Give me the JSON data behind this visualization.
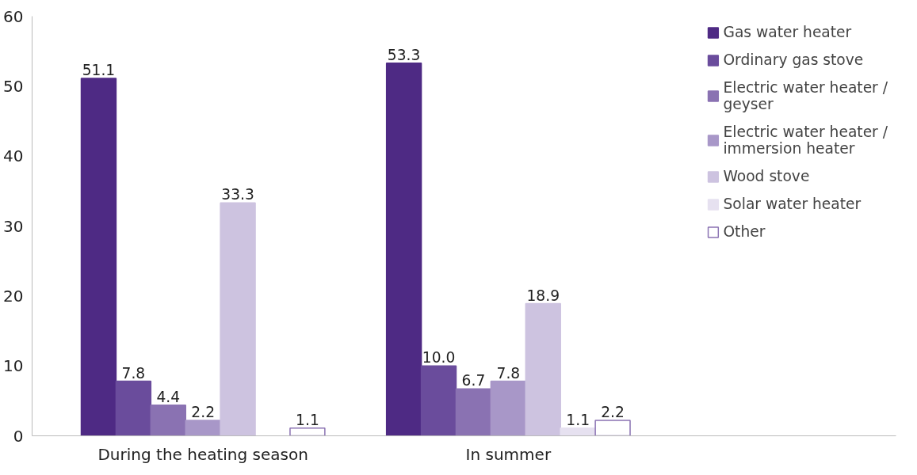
{
  "chart_data": {
    "type": "bar",
    "categories": [
      "During the heating season",
      "In summer"
    ],
    "series": [
      {
        "name": "Gas water heater",
        "color": "#4e2a84",
        "values": [
          51.1,
          53.3
        ],
        "value_labels": [
          "51.1",
          "53.3"
        ]
      },
      {
        "name": "Ordinary gas stove",
        "color": "#6a4c9c",
        "values": [
          7.8,
          10.0
        ],
        "value_labels": [
          "7.8",
          "10.0"
        ]
      },
      {
        "name": "Electric water heater / geyser",
        "color": "#8a72b2",
        "values": [
          4.4,
          6.7
        ],
        "value_labels": [
          "4.4",
          "6.7"
        ]
      },
      {
        "name": "Electric water heater / immersion heater",
        "color": "#a897c8",
        "values": [
          2.2,
          7.8
        ],
        "value_labels": [
          "2.2",
          "7.8"
        ]
      },
      {
        "name": "Wood stove",
        "color": "#cdc3e0",
        "values": [
          33.3,
          18.9
        ],
        "value_labels": [
          "33.3",
          "18.9"
        ]
      },
      {
        "name": "Solar water heater",
        "color": "#e6e1f0",
        "values": [
          null,
          1.1
        ],
        "value_labels": [
          null,
          "1.1"
        ]
      },
      {
        "name": "Other",
        "color": "#ffffff",
        "values": [
          1.1,
          2.2
        ],
        "value_labels": [
          "1.1",
          "2.2"
        ]
      }
    ],
    "ylim": [
      0,
      60
    ],
    "yticks": [
      0,
      10,
      20,
      30,
      40,
      50,
      60
    ],
    "grid": false,
    "legend": "right"
  }
}
